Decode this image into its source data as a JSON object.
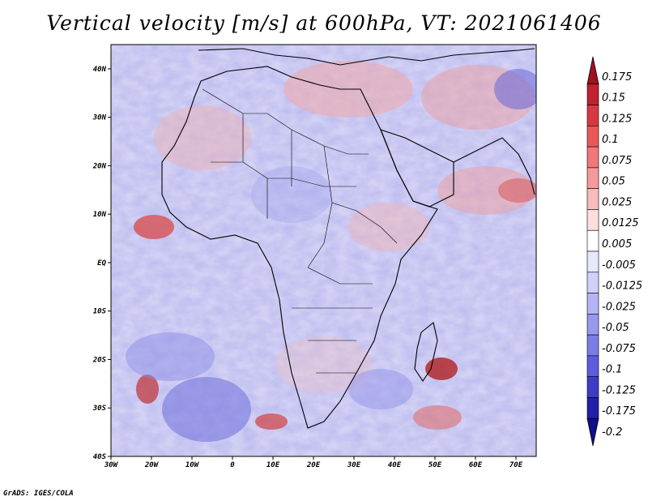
{
  "title": "Vertical velocity [m/s] at 600hPa, VT: 2021061406",
  "credit": "GrADS: IGES/COLA",
  "map": {
    "lat_labels": [
      "40N",
      "30N",
      "20N",
      "10N",
      "EQ",
      "10S",
      "20S",
      "30S",
      "40S"
    ],
    "lon_labels": [
      "30W",
      "20W",
      "10W",
      "0",
      "10E",
      "20E",
      "30E",
      "40E",
      "50E",
      "60E",
      "70E"
    ],
    "lon_range": [
      -30,
      75
    ],
    "lat_range": [
      -40,
      45
    ]
  },
  "colorbar": {
    "labels": [
      "0.175",
      "0.15",
      "0.125",
      "0.1",
      "0.075",
      "0.05",
      "0.025",
      "0.0125",
      "0.005",
      "-0.005",
      "-0.0125",
      "-0.025",
      "-0.05",
      "-0.075",
      "-0.1",
      "-0.125",
      "-0.175",
      "-0.2"
    ],
    "colors": [
      "#a01020",
      "#c02030",
      "#d83840",
      "#e85858",
      "#f07878",
      "#f49a9a",
      "#f8bcbc",
      "#fcdede",
      "#ffffff",
      "#e8e8fc",
      "#d0d0f8",
      "#b4b4f4",
      "#9898ee",
      "#7c7ce6",
      "#5c5cde",
      "#3c3cc8",
      "#2020a8",
      "#10108a"
    ]
  }
}
